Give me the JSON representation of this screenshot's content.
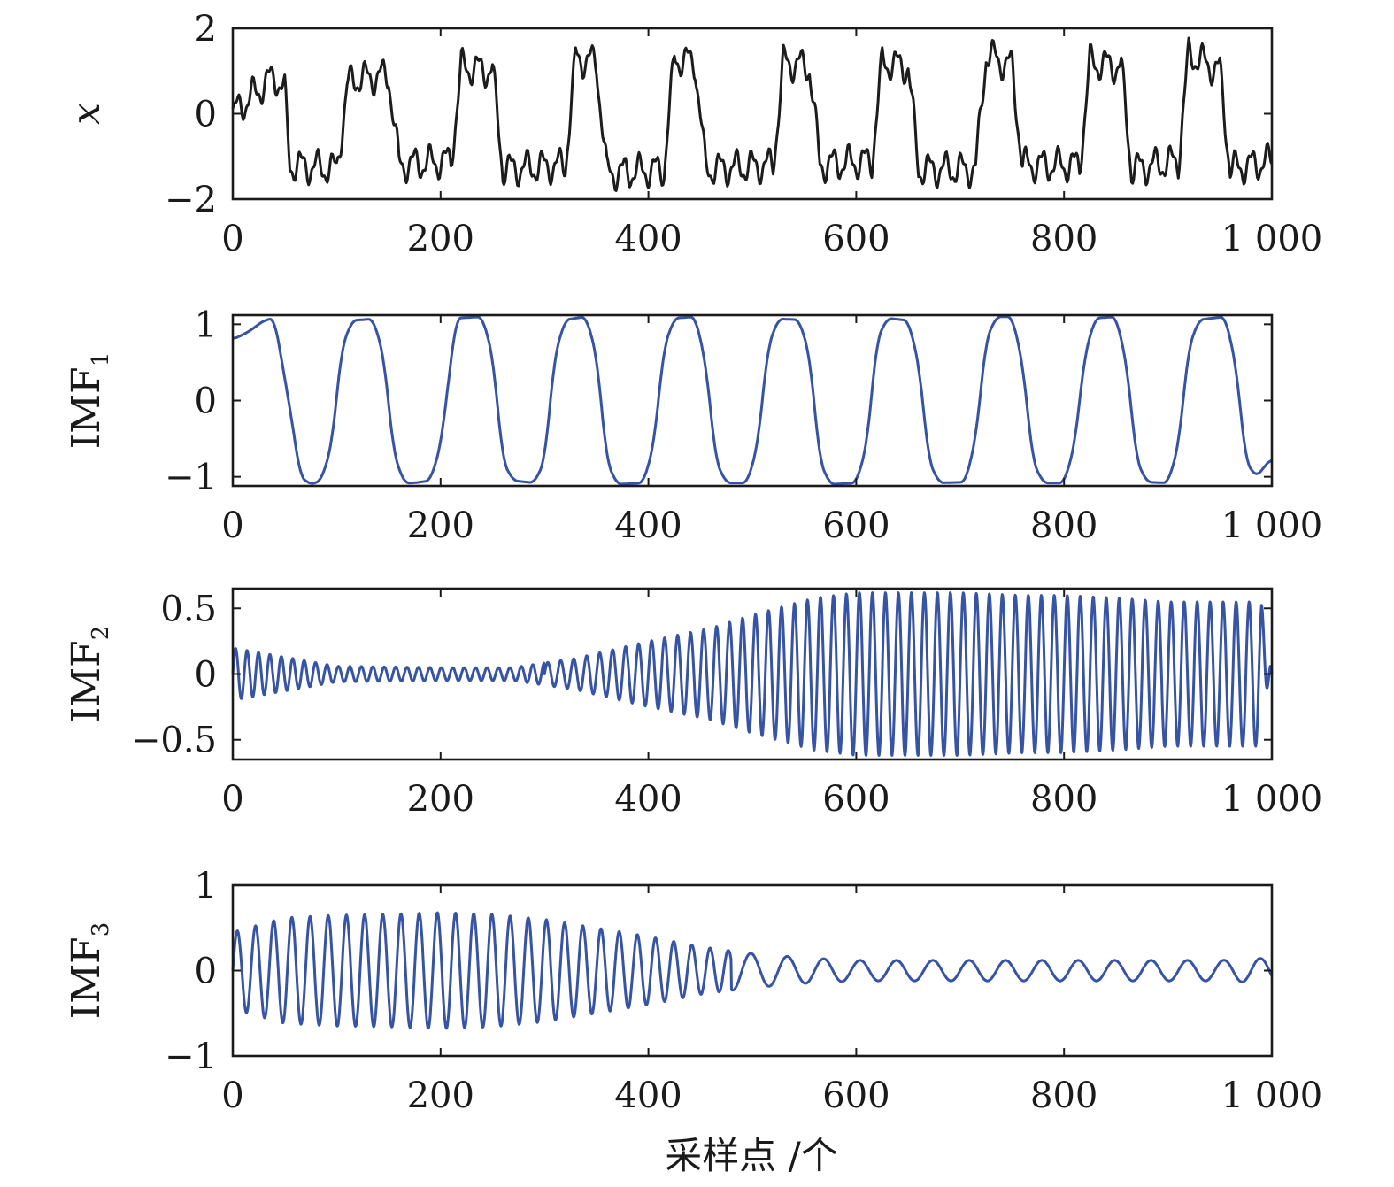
{
  "colors": {
    "x_signal": "#1c1c1c",
    "imf": "#3653a4",
    "axes": "#1a1a1a"
  },
  "chart_data": [
    {
      "type": "line",
      "ylabel": "x",
      "ylim": [
        -2,
        2
      ],
      "xlim": [
        0,
        1000
      ],
      "yticks": [
        -2,
        0,
        2
      ],
      "ytick_labels": [
        "−2",
        "0",
        "2"
      ],
      "xticks": [
        0,
        200,
        400,
        600,
        800,
        1000
      ],
      "xtick_labels": [
        "0",
        "200",
        "400",
        "600",
        "800",
        "1 000"
      ],
      "xlabel": "",
      "series": [
        {
          "x": [
            0,
            40,
            50,
            55,
            100,
            110,
            115,
            150,
            160,
            210,
            220,
            250,
            260,
            320,
            330,
            350,
            360,
            415,
            425,
            445,
            455,
            520,
            530,
            555,
            565,
            615,
            625,
            650,
            660,
            715,
            725,
            750,
            760,
            815,
            825,
            855,
            865,
            910,
            920,
            950,
            960,
            1000
          ],
          "values": [
            0,
            0.9,
            0.5,
            -1.2,
            -1.3,
            0.6,
            0.8,
            0.9,
            -1.2,
            -1.1,
            1.1,
            1.0,
            -1.3,
            -1.2,
            1.3,
            1.2,
            -1.4,
            -1.3,
            1.3,
            1.2,
            -1.3,
            -1.2,
            1.2,
            1.1,
            -1.2,
            -1.1,
            1.2,
            1.1,
            -1.3,
            -1.3,
            1.4,
            1.1,
            -1.2,
            -1.2,
            1.2,
            1.1,
            -1.3,
            -1.1,
            1.4,
            1.0,
            -1.3,
            -1.1
          ]
        }
      ]
    },
    {
      "type": "line",
      "ylabel": "IMF",
      "ylabel_sub": "1",
      "ylim": [
        -1.12,
        1.12
      ],
      "xlim": [
        0,
        1000
      ],
      "yticks": [
        -1,
        0,
        1
      ],
      "ytick_labels": [
        "−1",
        "0",
        "1"
      ],
      "xticks": [
        0,
        200,
        400,
        600,
        800,
        1000
      ],
      "xtick_labels": [
        "0",
        "200",
        "400",
        "600",
        "800",
        "1 000"
      ],
      "xlabel": "",
      "series": [
        {
          "x": [
            0,
            15,
            30,
            40,
            55,
            65,
            75,
            85,
            95,
            105,
            115,
            135,
            145,
            155,
            165,
            175,
            190,
            200,
            215,
            240,
            250,
            260,
            270,
            290,
            300,
            310,
            320,
            340,
            350,
            360,
            370,
            395,
            405,
            415,
            425,
            445,
            455,
            465,
            475,
            495,
            505,
            515,
            525,
            545,
            555,
            565,
            575,
            600,
            610,
            620,
            630,
            650,
            660,
            670,
            680,
            705,
            715,
            725,
            735,
            750,
            760,
            770,
            780,
            800,
            810,
            820,
            830,
            850,
            860,
            870,
            880,
            900,
            910,
            920,
            930,
            955,
            965,
            975,
            985,
            1000
          ],
          "values": [
            0.8,
            0.9,
            1.05,
            1.08,
            -0.1,
            -1.0,
            -1.1,
            -1.05,
            -0.6,
            0.7,
            1.05,
            1.07,
            0.6,
            -0.7,
            -1.08,
            -1.08,
            -1.05,
            -0.6,
            1.08,
            1.1,
            0.6,
            -0.8,
            -1.05,
            -1.08,
            -0.8,
            0.6,
            1.06,
            1.1,
            0.6,
            -0.8,
            -1.1,
            -1.08,
            -0.6,
            0.7,
            1.08,
            1.1,
            0.5,
            -0.8,
            -1.08,
            -1.08,
            -0.6,
            0.7,
            1.07,
            1.06,
            0.6,
            -0.8,
            -1.1,
            -1.08,
            -0.6,
            0.8,
            1.08,
            1.05,
            0.5,
            -0.8,
            -1.08,
            -1.07,
            -0.5,
            0.8,
            1.1,
            1.1,
            0.5,
            -0.8,
            -1.08,
            -1.08,
            -0.6,
            0.6,
            1.08,
            1.1,
            0.5,
            -0.8,
            -1.07,
            -1.08,
            -0.6,
            0.7,
            1.06,
            1.1,
            0.5,
            -0.8,
            -1.0,
            -0.75
          ]
        }
      ]
    },
    {
      "type": "line",
      "ylabel": "IMF",
      "ylabel_sub": "2",
      "ylim": [
        -0.65,
        0.65
      ],
      "xlim": [
        0,
        1000
      ],
      "yticks": [
        -0.5,
        0,
        0.5
      ],
      "ytick_labels": [
        "−0.5",
        "0",
        "0.5"
      ],
      "xticks": [
        0,
        200,
        400,
        600,
        800,
        1000
      ],
      "xtick_labels": [
        "0",
        "200",
        "400",
        "600",
        "800",
        "1 000"
      ],
      "xlabel": "",
      "series": [
        {
          "x": [
            0,
            100,
            200,
            270,
            330,
            400,
            460,
            500,
            560,
            600,
            650,
            700,
            760,
            800,
            850,
            900,
            950,
            990,
            1000
          ],
          "values": [
            0.2,
            0.06,
            0.05,
            0.05,
            0.12,
            0.25,
            0.35,
            0.45,
            0.58,
            0.62,
            0.62,
            0.62,
            0.6,
            0.6,
            0.58,
            0.55,
            0.55,
            0.55,
            -0.2
          ]
        }
      ]
    },
    {
      "type": "line",
      "ylabel": "IMF",
      "ylabel_sub": "3",
      "ylim": [
        -1,
        1
      ],
      "xlim": [
        0,
        1000
      ],
      "yticks": [
        -1,
        0,
        1
      ],
      "ytick_labels": [
        "−1",
        "0",
        "1"
      ],
      "xticks": [
        0,
        200,
        400,
        600,
        800,
        1000
      ],
      "xtick_labels": [
        "0",
        "200",
        "400",
        "600",
        "800",
        "1 000"
      ],
      "xlabel": "采样点 /个",
      "series": [
        {
          "x": [
            0,
            50,
            100,
            150,
            200,
            250,
            300,
            350,
            400,
            450,
            500,
            550,
            600,
            650,
            700,
            750,
            800,
            850,
            900,
            950,
            1000
          ],
          "values": [
            0.45,
            0.62,
            0.65,
            0.66,
            0.68,
            0.66,
            0.6,
            0.5,
            0.4,
            0.28,
            0.2,
            0.15,
            0.12,
            0.12,
            0.12,
            0.12,
            0.12,
            0.12,
            0.12,
            0.12,
            0.15
          ]
        }
      ]
    }
  ]
}
